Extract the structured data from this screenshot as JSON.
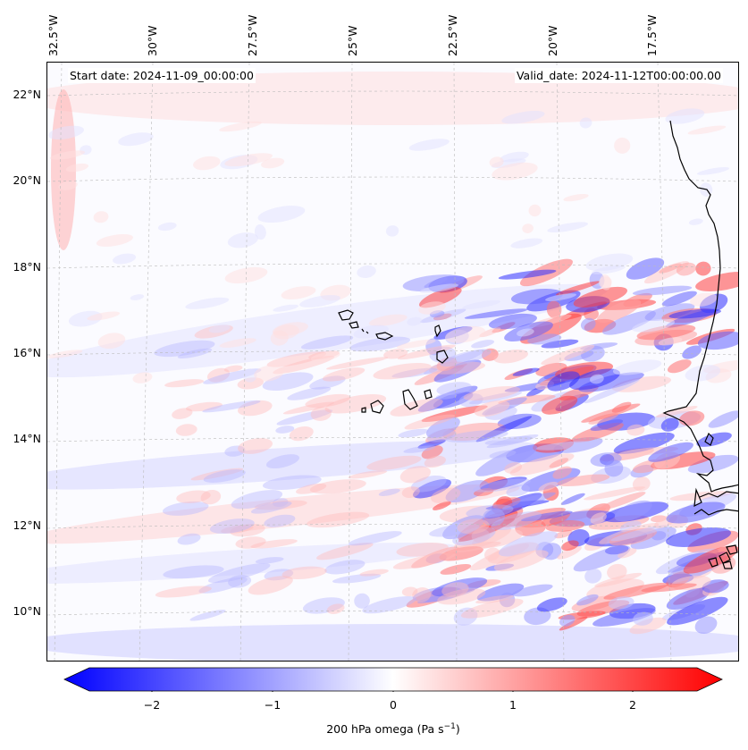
{
  "annotations": {
    "start_date": "Start date: 2024-11-09_00:00:00",
    "valid_date": "Valid_date: 2024-11-12T00:00:00.00"
  },
  "map": {
    "lon_labels": [
      "32.5°W",
      "30°W",
      "27.5°W",
      "25°W",
      "22.5°W",
      "20°W",
      "17.5°W"
    ],
    "lat_labels": [
      "22°N",
      "20°N",
      "18°N",
      "16°N",
      "14°N",
      "12°N",
      "10°N"
    ],
    "coastline_color": "#000000",
    "gridline_color": "#bbbbbb"
  },
  "colorbar": {
    "label_text": "200 hPa omega (Pa s",
    "label_sup": "−1",
    "label_close": ")",
    "ticks": [
      "−2",
      "−1",
      "0",
      "1",
      "2"
    ],
    "min": -2.75,
    "max": 2.75,
    "colormap": "bwr",
    "extend": "both"
  }
}
